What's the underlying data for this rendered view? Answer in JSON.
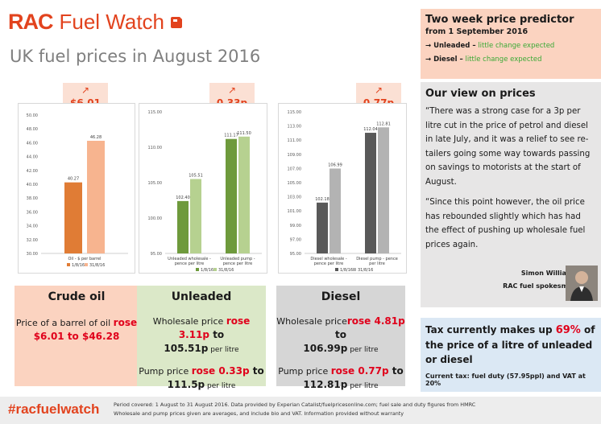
{
  "header": {
    "logo_rac": "RAC",
    "logo_fuel_watch": "Fuel Watch",
    "page_title": "UK fuel prices in August 2016"
  },
  "colors": {
    "brand": "#e2431e",
    "highlight_red": "#e0001b",
    "green_text": "#3aa935",
    "crude_box": "#fbd3c0",
    "unleaded_box": "#dbe8c8",
    "diesel_box": "#d6d6d6",
    "tax_box": "#dbe8f4",
    "view_box": "#e7e6e6"
  },
  "charts": {
    "crude": {
      "change": "$6.01",
      "arrow": "↗"
    },
    "unleaded": {
      "change": "0.33p",
      "arrow": "↗"
    },
    "diesel": {
      "change": "0.77p",
      "arrow": "↗"
    }
  },
  "chart_data": [
    {
      "type": "bar",
      "id": "crude",
      "categories": [
        "Oil - $ per barrel"
      ],
      "series": [
        {
          "name": "1/8/16",
          "values": [
            40.27
          ],
          "color": "#e07c35"
        },
        {
          "name": "31/8/16",
          "values": [
            46.28
          ],
          "color": "#f7b48f"
        }
      ],
      "ylim": [
        30,
        50
      ],
      "yticks": [
        "30.00",
        "32.00",
        "34.00",
        "36.00",
        "38.00",
        "40.00",
        "42.00",
        "44.00",
        "46.00",
        "48.00",
        "50.00"
      ],
      "value_labels": [
        [
          "40.27"
        ],
        [
          "46.28"
        ]
      ],
      "legend": [
        "1/8/16",
        "31/8/16"
      ],
      "grid": false
    },
    {
      "type": "bar",
      "id": "unleaded",
      "categories": [
        "Unleaded wholesale - pence per litre",
        "Unleaded pump - pence per litre"
      ],
      "category_lines": [
        [
          "Unleaded wholesale -",
          "pence per litre"
        ],
        [
          "Unleaded pump -",
          "pence per litre"
        ]
      ],
      "series": [
        {
          "name": "1/8/16",
          "values": [
            102.4,
            111.17
          ],
          "color": "#6e9a3c"
        },
        {
          "name": "31/8/16",
          "values": [
            105.51,
            111.5
          ],
          "color": "#b6d190"
        }
      ],
      "ylim": [
        95,
        115
      ],
      "yticks": [
        "95.00",
        "100.00",
        "105.00",
        "110.00",
        "115.00"
      ],
      "value_labels": [
        [
          "102.40",
          "111.17"
        ],
        [
          "105.51",
          "111.50"
        ]
      ],
      "legend": [
        "1/8/16",
        "31/8/16"
      ],
      "grid": false
    },
    {
      "type": "bar",
      "id": "diesel",
      "categories": [
        "Diesel wholesale - pence per litre",
        "Diesel pump - pence per litre"
      ],
      "category_lines": [
        [
          "Diesel wholesale -",
          "pence per litre"
        ],
        [
          "Diesel pump - pence",
          "per litre"
        ]
      ],
      "series": [
        {
          "name": "1/8/16",
          "values": [
            102.18,
            112.04
          ],
          "color": "#595959"
        },
        {
          "name": "31/8/16",
          "values": [
            106.99,
            112.81
          ],
          "color": "#b3b3b3"
        }
      ],
      "ylim": [
        95,
        115
      ],
      "yticks": [
        "95.00",
        "97.00",
        "99.00",
        "101.00",
        "103.00",
        "105.00",
        "107.00",
        "109.00",
        "111.00",
        "113.00",
        "115.00"
      ],
      "value_labels": [
        [
          "102.18",
          "112.04"
        ],
        [
          "106.99",
          "112.81"
        ]
      ],
      "legend": [
        "1/8/16",
        "31/8/16"
      ],
      "grid": false
    }
  ],
  "crude_box": {
    "title": "Crude oil",
    "line1_prefix": "Price of a barrel of oil ",
    "line1_red": "rose",
    "line2": "$6.01 to $46.28"
  },
  "unleaded_box": {
    "title": "Unleaded",
    "wholesale_prefix": "Wholesale price ",
    "wholesale_red": "rose 3.11p",
    "wholesale_to": " to",
    "wholesale_value": "105.51p",
    "wholesale_unit": " per litre",
    "pump_prefix": "Pump price ",
    "pump_red": "rose 0.33p",
    "pump_to": " to",
    "pump_value": "111.5p",
    "pump_unit": " per litre"
  },
  "diesel_box": {
    "title": "Diesel",
    "wholesale_prefix": "Wholesale price",
    "wholesale_red": "rose 4.81p",
    "wholesale_to": " to",
    "wholesale_value": "106.99p",
    "wholesale_unit": " per litre",
    "pump_prefix": "Pump price ",
    "pump_red": "rose 0.77p",
    "pump_to": " to",
    "pump_value": "112.81p",
    "pump_unit": " per litre"
  },
  "predictor": {
    "title": "Two week price predictor",
    "subtitle": "from 1 September 2016",
    "rows": [
      {
        "fuel": "→ Unleaded –",
        "outlook": " little change expected"
      },
      {
        "fuel": "→ Diesel –",
        "outlook": " little change expected"
      }
    ]
  },
  "view": {
    "title": "Our view on prices",
    "para1": "“There was a strong case for a 3p per litre cut in the price of petrol and diesel in late July, and it was a relief to see re-tailers going some way towards passing on savings to motorists at the start of August.",
    "para2": "“Since this point however, the oil price has rebounded slightly which has had the effect of pushing up wholesale fuel prices again.",
    "name": "Simon Williams",
    "role": "RAC fuel spokesman"
  },
  "tax": {
    "prefix": "Tax currently makes up ",
    "pct": "69%",
    "suffix": " of the price of a litre of unleaded or diesel",
    "detail": "Current tax: fuel duty (57.95ppl) and VAT at 20%"
  },
  "footer": {
    "hashtag": "#racfuelwatch",
    "line1": "Period covered: 1 August to 31 August 2016. Data provided by Experian Catalist/fuelpricesonline.com; fuel sale and duty figures from HMRC",
    "line2": "Wholesale and pump prices given are averages, and include bio and VAT. Information provided without warranty"
  }
}
